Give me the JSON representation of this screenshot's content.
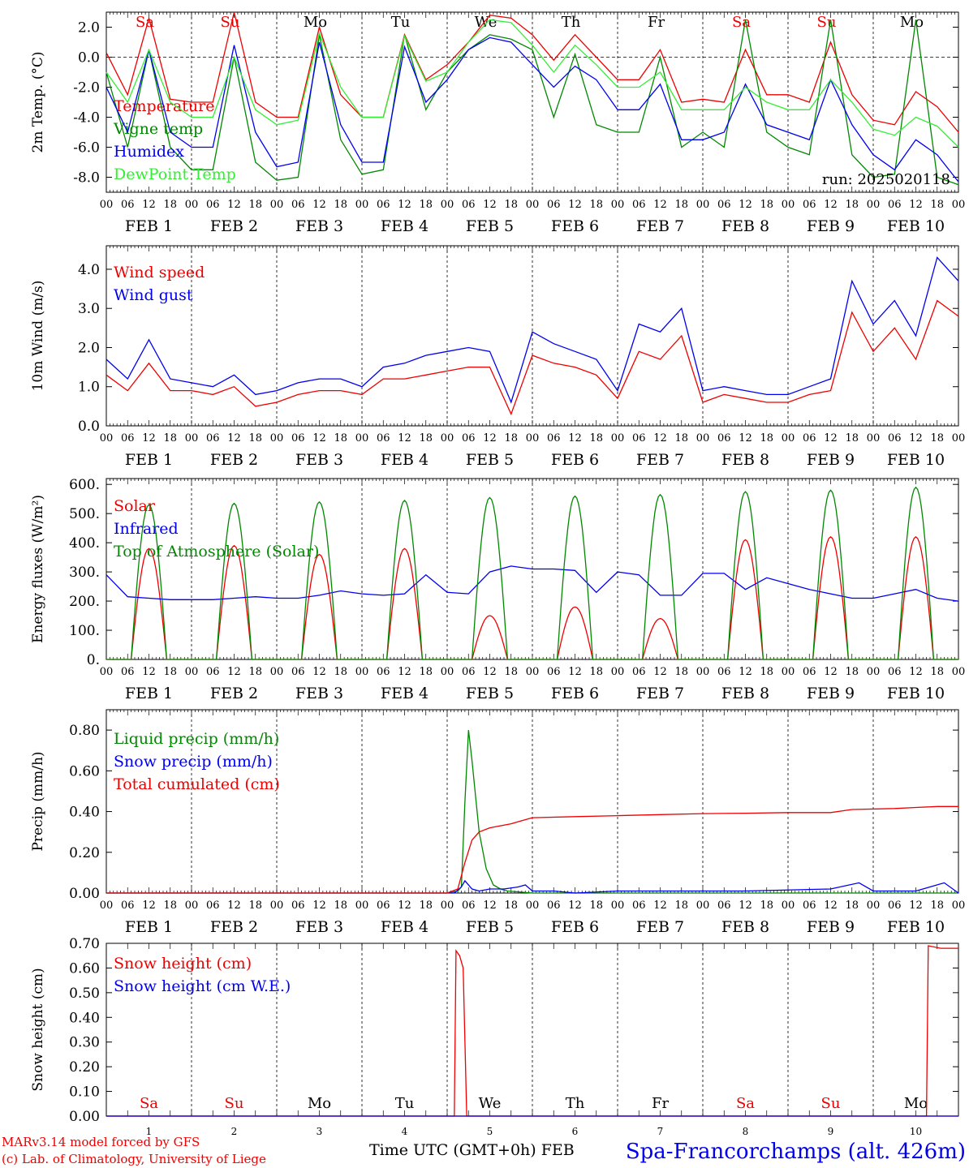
{
  "footer": {
    "model_line": "MARv3.14 model forced by GFS",
    "copyright_line": "(c) Lab. of Climatology, University of Liege",
    "time_axis_label": "Time UTC (GMT+0h) FEB",
    "station": "Spa-Francorchamps (alt. 426m)"
  },
  "colors": {
    "red": "#ee0000",
    "green": "#008800",
    "blue": "#0000ee",
    "light_green": "#33ee33",
    "black": "#000000"
  },
  "days": {
    "weekday_labels": [
      "Sa",
      "Su",
      "Mo",
      "Tu",
      "We",
      "Th",
      "Fr",
      "Sa",
      "Su",
      "Mo"
    ],
    "weekend_flags": [
      true,
      true,
      false,
      false,
      false,
      false,
      false,
      true,
      true,
      false
    ],
    "month_label": "FEB",
    "day_numbers": [
      "1",
      "2",
      "3",
      "4",
      "5",
      "6",
      "7",
      "8",
      "9",
      "10"
    ],
    "hour_ticks": [
      "00",
      "06",
      "12",
      "18"
    ],
    "final_hour_tick": "00"
  },
  "chart_data": [
    {
      "type": "line",
      "ylabel": "2m Temp. (°C)",
      "ylim": [
        -9,
        3
      ],
      "yticks": [
        "-8.0",
        "-6.0",
        "-4.0",
        "-2.0",
        "0.0",
        "2.0"
      ],
      "ytick_values": [
        -8,
        -6,
        -4,
        -2,
        0,
        2
      ],
      "annotation": "run: 2025020118",
      "zero_line": true,
      "x_unit": "hours since FEB 1 00 UTC",
      "series": [
        {
          "name": "Temperature",
          "color": "red",
          "x": [
            0,
            6,
            12,
            18,
            24,
            30,
            36,
            42,
            48,
            54,
            60,
            66,
            72,
            78,
            84,
            90,
            96,
            102,
            108,
            114,
            120,
            126,
            132,
            138,
            144,
            150,
            156,
            162,
            168,
            174,
            180,
            186,
            192,
            198,
            204,
            210,
            216,
            222,
            228,
            234,
            240
          ],
          "values": [
            0.3,
            -2.5,
            2.6,
            -2.8,
            -3,
            -3,
            3,
            -3,
            -4,
            -4,
            2,
            -2.5,
            -4,
            -4,
            1.5,
            -1.5,
            -0.5,
            1,
            2.8,
            2.6,
            1.5,
            -0.2,
            1.5,
            0,
            -1.5,
            -1.5,
            0.5,
            -3,
            -2.8,
            -3,
            0.5,
            -2.5,
            -2.5,
            -3,
            1,
            -2.5,
            -4.2,
            -4.5,
            -2.3,
            -3.3,
            -5
          ]
        },
        {
          "name": "Vigne temp",
          "color": "green",
          "x": [
            0,
            6,
            12,
            18,
            24,
            30,
            36,
            42,
            48,
            54,
            60,
            66,
            72,
            78,
            84,
            90,
            96,
            102,
            108,
            114,
            120,
            126,
            132,
            138,
            144,
            150,
            156,
            162,
            168,
            174,
            180,
            186,
            192,
            198,
            204,
            210,
            216,
            222,
            228,
            234,
            240
          ],
          "values": [
            -1,
            -6,
            0.5,
            -6,
            -7.5,
            -7.5,
            0,
            -7,
            -8.2,
            -8,
            1.5,
            -5.5,
            -7.8,
            -7.5,
            1.5,
            -3.5,
            -1,
            0.5,
            1.5,
            1.2,
            0.5,
            -4,
            0.2,
            -4.5,
            -5,
            -5,
            0,
            -6,
            -5,
            -6,
            2.5,
            -5,
            -6,
            -6.5,
            2.5,
            -6.5,
            -8,
            -7.8,
            2.5,
            -8,
            -8.5
          ]
        },
        {
          "name": "Humidex",
          "color": "blue",
          "x": [
            0,
            6,
            12,
            18,
            24,
            30,
            36,
            42,
            48,
            54,
            60,
            66,
            72,
            78,
            84,
            90,
            96,
            102,
            108,
            114,
            120,
            126,
            132,
            138,
            144,
            150,
            156,
            162,
            168,
            174,
            180,
            186,
            192,
            198,
            204,
            210,
            216,
            222,
            228,
            234,
            240
          ],
          "values": [
            -2,
            -5,
            0.5,
            -5,
            -6,
            -6,
            0.8,
            -5,
            -7.3,
            -7,
            1,
            -4.5,
            -7,
            -7,
            0.7,
            -3,
            -1.5,
            0.5,
            1.3,
            1,
            -0.5,
            -2,
            -0.6,
            -1.5,
            -3.5,
            -3.5,
            -1.8,
            -5.5,
            -5.5,
            -5,
            -1.8,
            -4.5,
            -5,
            -5.5,
            -1.5,
            -4.5,
            -6.5,
            -7.5,
            -5.5,
            -6.5,
            -8.3
          ]
        },
        {
          "name": "DewPoint Temp",
          "color": "light_green",
          "x": [
            0,
            6,
            12,
            18,
            24,
            30,
            36,
            42,
            48,
            54,
            60,
            66,
            72,
            78,
            84,
            90,
            96,
            102,
            108,
            114,
            120,
            126,
            132,
            138,
            144,
            150,
            156,
            162,
            168,
            174,
            180,
            186,
            192,
            198,
            204,
            210,
            216,
            222,
            228,
            234,
            240
          ],
          "values": [
            -1,
            -3,
            0.5,
            -3,
            -4,
            -4,
            0,
            -3.5,
            -4.5,
            -4.2,
            1.6,
            -2,
            -4,
            -4,
            1.4,
            -1.6,
            -1,
            1,
            2.5,
            2.3,
            0.8,
            -1,
            0.8,
            -0.5,
            -2,
            -2,
            -1,
            -3.5,
            -3.5,
            -3.5,
            -2,
            -3,
            -3.5,
            -3.5,
            -1.5,
            -3,
            -4.8,
            -5.2,
            -4,
            -4.6,
            -6
          ]
        }
      ]
    },
    {
      "type": "line",
      "ylabel": "10m Wind (m/s)",
      "ylim": [
        0,
        4.6
      ],
      "yticks": [
        "0.0",
        "1.0",
        "2.0",
        "3.0",
        "4.0"
      ],
      "ytick_values": [
        0,
        1,
        2,
        3,
        4
      ],
      "x_unit": "hours since FEB 1 00 UTC",
      "series": [
        {
          "name": "Wind speed",
          "color": "red",
          "x": [
            0,
            6,
            12,
            18,
            24,
            30,
            36,
            42,
            48,
            54,
            60,
            66,
            72,
            78,
            84,
            90,
            96,
            102,
            108,
            114,
            120,
            126,
            132,
            138,
            144,
            150,
            156,
            162,
            168,
            174,
            180,
            186,
            192,
            198,
            204,
            210,
            216,
            222,
            228,
            234,
            240
          ],
          "values": [
            1.3,
            0.9,
            1.6,
            0.9,
            0.9,
            0.8,
            1,
            0.5,
            0.6,
            0.8,
            0.9,
            0.9,
            0.8,
            1.2,
            1.2,
            1.3,
            1.4,
            1.5,
            1.5,
            0.3,
            1.8,
            1.6,
            1.5,
            1.3,
            0.7,
            1.9,
            1.7,
            2.3,
            0.6,
            0.8,
            0.7,
            0.6,
            0.6,
            0.8,
            0.9,
            2.9,
            1.9,
            2.5,
            1.7,
            3.2,
            2.8
          ]
        },
        {
          "name": "Wind gust",
          "color": "blue",
          "x": [
            0,
            6,
            12,
            18,
            24,
            30,
            36,
            42,
            48,
            54,
            60,
            66,
            72,
            78,
            84,
            90,
            96,
            102,
            108,
            114,
            120,
            126,
            132,
            138,
            144,
            150,
            156,
            162,
            168,
            174,
            180,
            186,
            192,
            198,
            204,
            210,
            216,
            222,
            228,
            234,
            240
          ],
          "values": [
            1.7,
            1.2,
            2.2,
            1.2,
            1.1,
            1,
            1.3,
            0.8,
            0.9,
            1.1,
            1.2,
            1.2,
            1,
            1.5,
            1.6,
            1.8,
            1.9,
            2,
            1.9,
            0.6,
            2.4,
            2.1,
            1.9,
            1.7,
            0.9,
            2.6,
            2.4,
            3,
            0.9,
            1,
            0.9,
            0.8,
            0.8,
            1,
            1.2,
            3.7,
            2.6,
            3.2,
            2.3,
            4.3,
            3.7
          ]
        }
      ]
    },
    {
      "type": "line",
      "ylabel": "Energy fluxes (W/m²)",
      "ylim": [
        0,
        620
      ],
      "yticks": [
        "0.",
        "100.",
        "200.",
        "300.",
        "400.",
        "500.",
        "600."
      ],
      "ytick_values": [
        0,
        100,
        200,
        300,
        400,
        500,
        600
      ],
      "x_unit": "hours since FEB 1 00 UTC",
      "series": [
        {
          "name": "Solar",
          "color": "red",
          "peaks": [
            380,
            390,
            360,
            380,
            150,
            180,
            140,
            410,
            420,
            420
          ]
        },
        {
          "name": "Infrared",
          "color": "blue",
          "x": [
            0,
            6,
            12,
            18,
            24,
            30,
            36,
            42,
            48,
            54,
            60,
            66,
            72,
            78,
            84,
            90,
            96,
            102,
            108,
            114,
            120,
            126,
            132,
            138,
            144,
            150,
            156,
            162,
            168,
            174,
            180,
            186,
            192,
            198,
            204,
            210,
            216,
            222,
            228,
            234,
            240
          ],
          "values": [
            290,
            215,
            210,
            205,
            205,
            205,
            210,
            215,
            210,
            210,
            220,
            235,
            225,
            220,
            225,
            290,
            230,
            225,
            300,
            320,
            310,
            310,
            305,
            230,
            300,
            290,
            220,
            220,
            295,
            295,
            240,
            280,
            260,
            240,
            225,
            210,
            210,
            225,
            240,
            210,
            200
          ]
        },
        {
          "name": "Top of Atmosphere (Solar)",
          "color": "green",
          "peaks": [
            530,
            535,
            540,
            545,
            555,
            560,
            565,
            575,
            580,
            590
          ]
        }
      ]
    },
    {
      "type": "line",
      "ylabel": "Precip (mm/h)",
      "ylim": [
        0,
        0.9
      ],
      "yticks": [
        "0.00",
        "0.20",
        "0.40",
        "0.60",
        "0.80"
      ],
      "ytick_values": [
        0,
        0.2,
        0.4,
        0.6,
        0.8
      ],
      "x_unit": "hours since FEB 1 00 UTC",
      "series": [
        {
          "name": "Liquid precip (mm/h)",
          "color": "green",
          "x": [
            0,
            96,
            99,
            100,
            101,
            102,
            103,
            105,
            107,
            109,
            111,
            113,
            120,
            240
          ],
          "values": [
            0,
            0,
            0.01,
            0.03,
            0.45,
            0.8,
            0.65,
            0.3,
            0.12,
            0.04,
            0.02,
            0.01,
            0,
            0
          ]
        },
        {
          "name": "Snow precip (mm/h)",
          "color": "blue",
          "x": [
            0,
            98,
            100,
            101,
            103,
            105,
            108,
            112,
            116,
            118,
            120,
            126,
            132,
            144,
            156,
            180,
            204,
            212,
            216,
            228,
            236,
            240
          ],
          "values": [
            0,
            0,
            0.03,
            0.06,
            0.02,
            0.01,
            0.02,
            0.02,
            0.03,
            0.04,
            0.01,
            0.01,
            0,
            0.01,
            0.01,
            0.01,
            0.02,
            0.05,
            0.01,
            0.01,
            0.05,
            0
          ]
        },
        {
          "name": "Total cumulated (cm)",
          "color": "red",
          "x": [
            0,
            96,
            99,
            101,
            103,
            105,
            108,
            114,
            120,
            132,
            144,
            156,
            168,
            180,
            192,
            204,
            210,
            222,
            228,
            234,
            240
          ],
          "values": [
            0,
            0,
            0.02,
            0.15,
            0.26,
            0.3,
            0.32,
            0.34,
            0.37,
            0.375,
            0.38,
            0.385,
            0.39,
            0.392,
            0.395,
            0.395,
            0.41,
            0.415,
            0.42,
            0.425,
            0.425
          ]
        }
      ]
    },
    {
      "type": "line",
      "ylabel": "Snow height (cm)",
      "ylim": [
        0,
        0.7
      ],
      "yticks": [
        "0.00",
        "0.10",
        "0.20",
        "0.30",
        "0.40",
        "0.50",
        "0.60",
        "0.70"
      ],
      "ytick_values": [
        0,
        0.1,
        0.2,
        0.3,
        0.4,
        0.5,
        0.6,
        0.7
      ],
      "x_unit": "hours since FEB 1 00 UTC",
      "series": [
        {
          "name": "Snow height (cm)",
          "color": "red",
          "x": [
            0,
            98,
            98.5,
            99.5,
            100.5,
            101.5,
            240
          ],
          "values": [
            0,
            0,
            0.67,
            0.65,
            0.6,
            0,
            0
          ],
          "x_extra": [
            0,
            231,
            231.5,
            235,
            240
          ],
          "values_extra": [
            0,
            0,
            0.69,
            0.68,
            0.68
          ]
        },
        {
          "name": "Snow height (cm W.E.)",
          "color": "blue",
          "x": [
            0,
            240
          ],
          "values": [
            0,
            0
          ]
        }
      ]
    }
  ]
}
